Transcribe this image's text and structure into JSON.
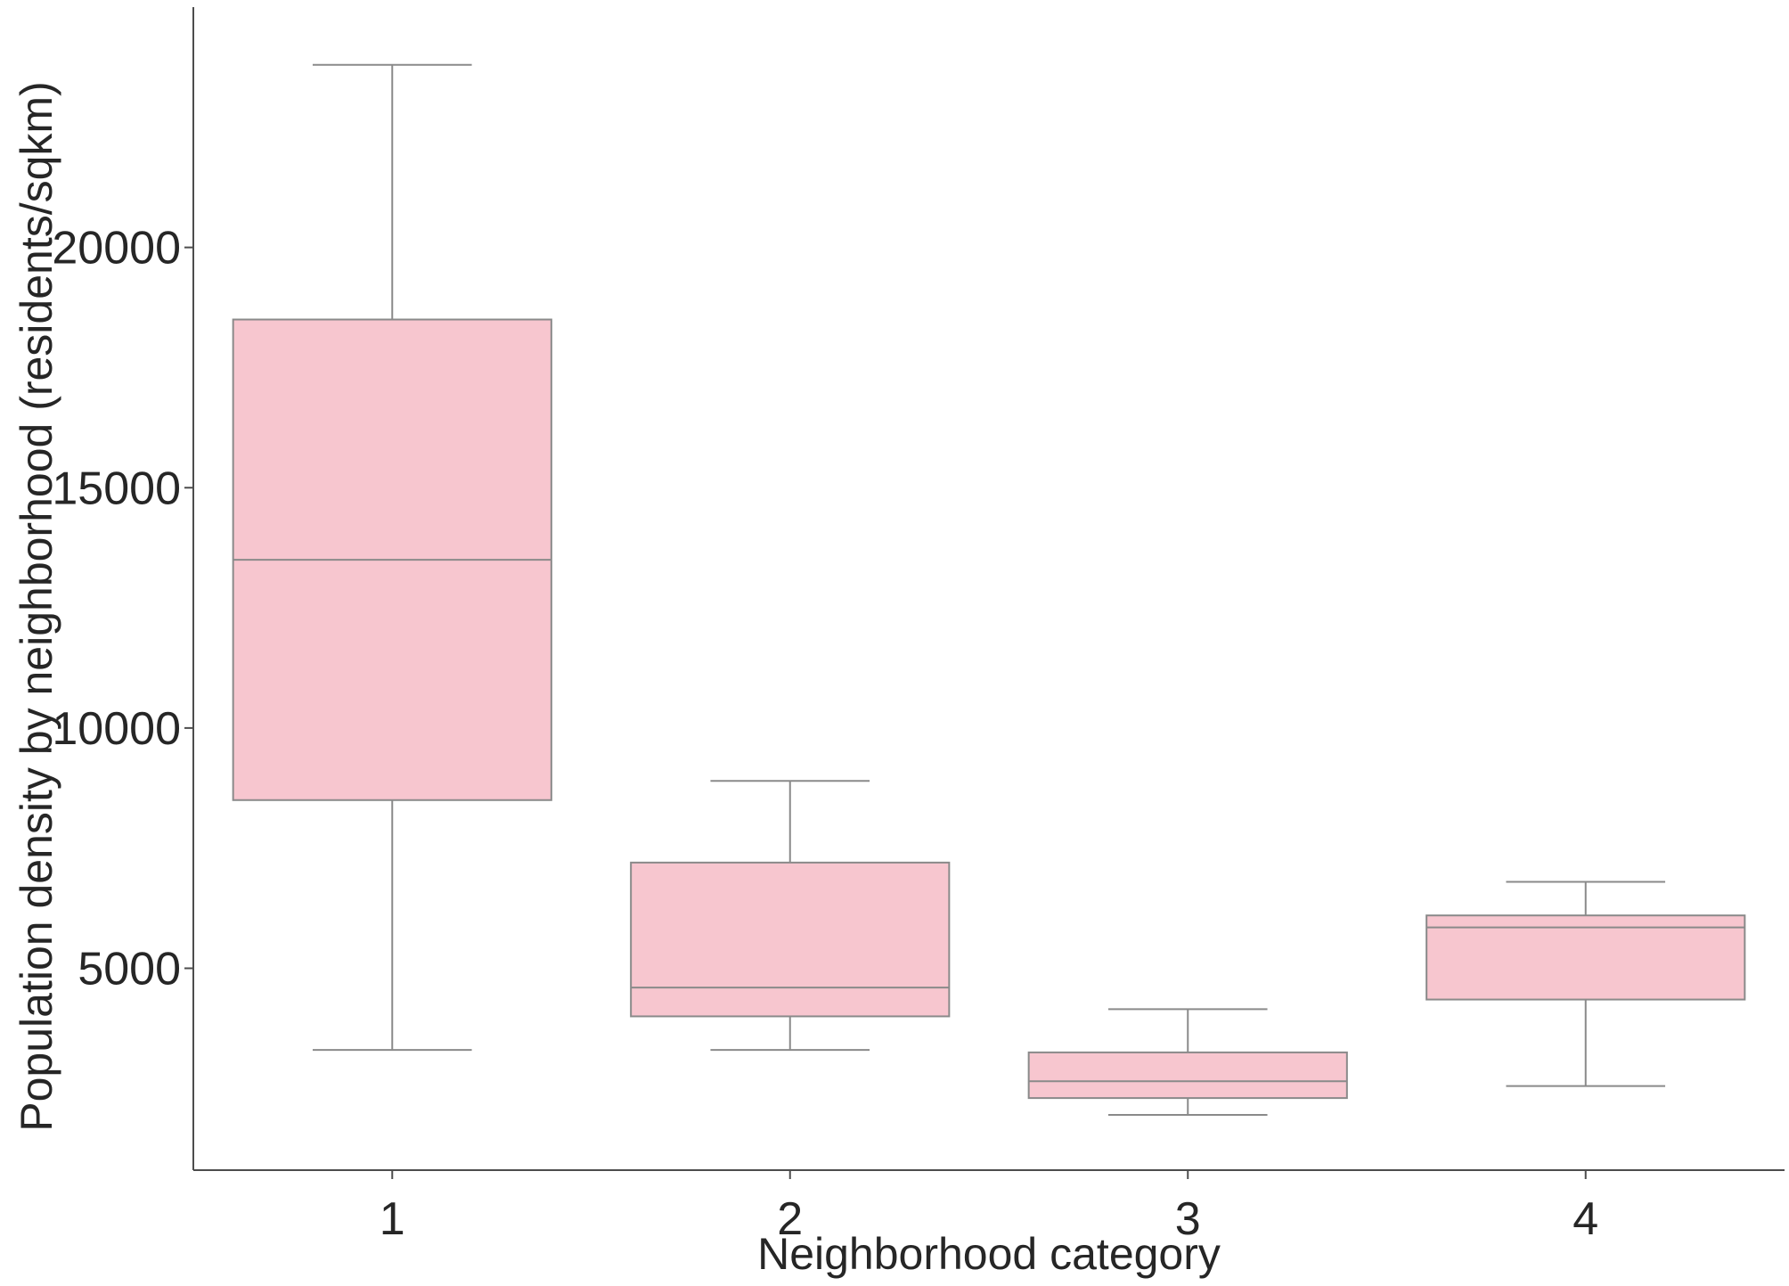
{
  "chart_data": {
    "type": "box",
    "xlabel": "Neighborhood category",
    "ylabel": "Population density by neighborhood (residents/sqkm)",
    "categories": [
      "1",
      "2",
      "3",
      "4"
    ],
    "yticks": [
      5000,
      10000,
      15000,
      20000
    ],
    "ylim": [
      800,
      25000
    ],
    "grid": false,
    "legend": "none",
    "box_color": "#f7c6cf",
    "line_color": "#8a8a8a",
    "axis_color": "#4d4d4d",
    "boxes": [
      {
        "category": "1",
        "whisker_low": 3300,
        "q1": 8500,
        "median": 13500,
        "q3": 18500,
        "whisker_high": 23800
      },
      {
        "category": "2",
        "whisker_low": 3300,
        "q1": 4000,
        "median": 4600,
        "q3": 7200,
        "whisker_high": 8900
      },
      {
        "category": "3",
        "whisker_low": 1950,
        "q1": 2300,
        "median": 2650,
        "q3": 3250,
        "whisker_high": 4150
      },
      {
        "category": "4",
        "whisker_low": 2550,
        "q1": 4350,
        "median": 5850,
        "q3": 6100,
        "whisker_high": 6800
      }
    ]
  }
}
